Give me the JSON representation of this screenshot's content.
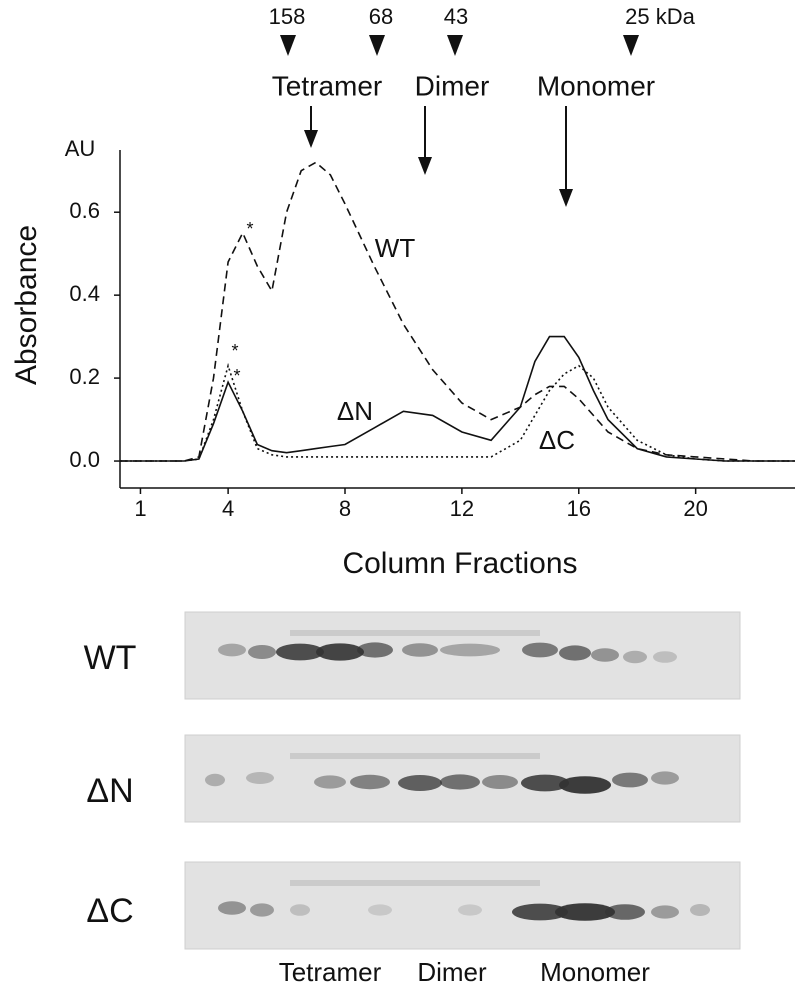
{
  "chart_data": {
    "type": "line",
    "y_unit": "AU",
    "y_label": "Absorbance",
    "x_label": "Column Fractions",
    "x": [
      0.3,
      1,
      2,
      2.5,
      3,
      3.5,
      4,
      4.5,
      5,
      5.5,
      6,
      6.5,
      7,
      7.5,
      8,
      9,
      10,
      11,
      12,
      13,
      14,
      14.5,
      15,
      15.5,
      16,
      16.5,
      17,
      18,
      19,
      20,
      21,
      22,
      23.4
    ],
    "series": [
      {
        "name": "WT",
        "color": "#111111",
        "dash": "dashed",
        "values": [
          0,
          0,
          0,
          0,
          0.01,
          0.2,
          0.48,
          0.55,
          0.47,
          0.41,
          0.6,
          0.7,
          0.72,
          0.69,
          0.62,
          0.47,
          0.33,
          0.22,
          0.14,
          0.1,
          0.13,
          0.16,
          0.18,
          0.18,
          0.15,
          0.11,
          0.07,
          0.03,
          0.015,
          0.01,
          0.005,
          0,
          0
        ]
      },
      {
        "name": "ΔN",
        "color": "#111111",
        "dash": "solid",
        "values": [
          0,
          0,
          0,
          0,
          0.005,
          0.09,
          0.19,
          0.12,
          0.04,
          0.025,
          0.02,
          0.025,
          0.03,
          0.035,
          0.04,
          0.08,
          0.12,
          0.11,
          0.07,
          0.05,
          0.13,
          0.24,
          0.3,
          0.3,
          0.25,
          0.17,
          0.1,
          0.03,
          0.01,
          0.005,
          0,
          0,
          0
        ]
      },
      {
        "name": "ΔC",
        "color": "#111111",
        "dash": "dotted",
        "values": [
          0,
          0,
          0,
          0,
          0.005,
          0.1,
          0.23,
          0.12,
          0.03,
          0.015,
          0.01,
          0.01,
          0.01,
          0.01,
          0.01,
          0.01,
          0.01,
          0.01,
          0.01,
          0.01,
          0.05,
          0.11,
          0.17,
          0.21,
          0.23,
          0.2,
          0.13,
          0.05,
          0.015,
          0.005,
          0,
          0,
          0
        ]
      }
    ],
    "xlim": [
      0.3,
      23.4
    ],
    "xticks": [
      1,
      4,
      8,
      12,
      16,
      20
    ],
    "ylim": [
      -0.065,
      0.75
    ],
    "yticks": [
      {
        "value": 0,
        "label": "0.0"
      },
      0.2,
      0.4,
      0.6
    ],
    "peak_marks": [
      "*",
      "*",
      "*"
    ],
    "size_markers": [
      "158",
      "68",
      "43",
      "25 kDa"
    ],
    "species_markers": [
      "Tetramer",
      "Dimer",
      "Monomer"
    ]
  },
  "gels": {
    "lanes": [
      "WT",
      "ΔN",
      "ΔC"
    ],
    "bottom_labels": [
      "Tetramer",
      "Dimer",
      "Monomer"
    ]
  }
}
